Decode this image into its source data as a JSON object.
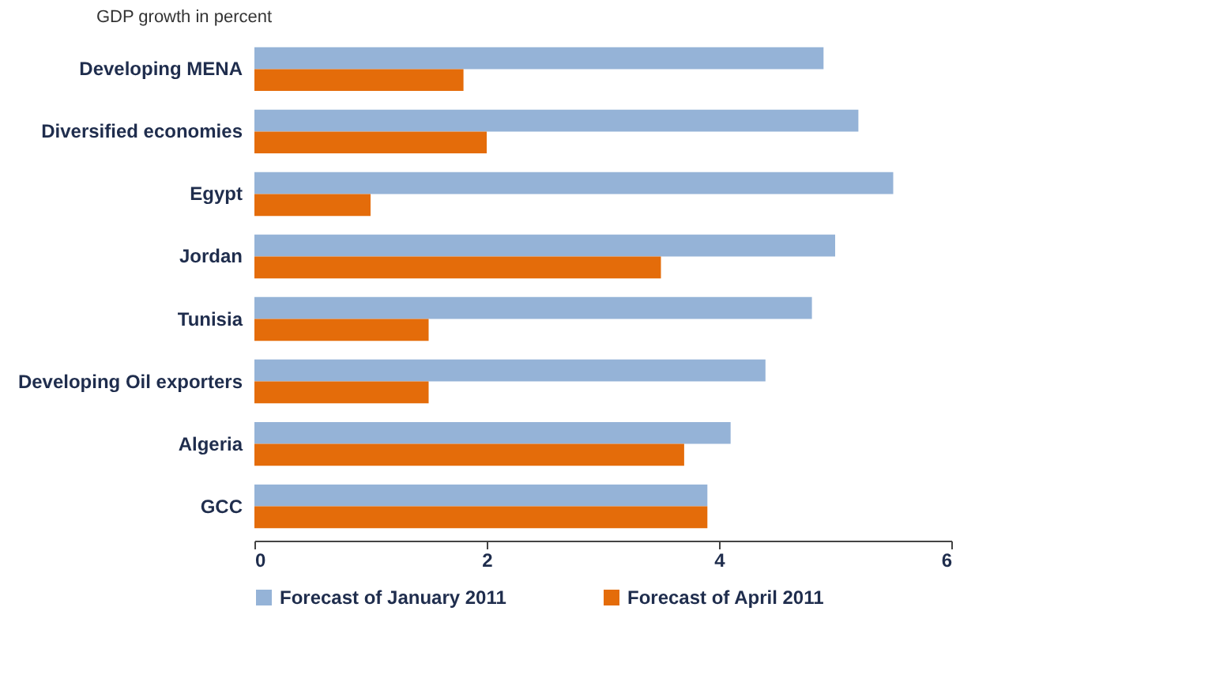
{
  "chart_data": {
    "type": "bar",
    "orientation": "horizontal",
    "title": "GDP growth in percent",
    "categories": [
      "Developing MENA",
      "Diversified economies",
      "Egypt",
      "Jordan",
      "Tunisia",
      "Developing Oil exporters",
      "Algeria",
      "GCC"
    ],
    "series": [
      {
        "name": "Forecast of January 2011",
        "color": "#95b3d7",
        "values": [
          4.9,
          5.2,
          5.5,
          5.0,
          4.8,
          4.4,
          4.1,
          3.9
        ]
      },
      {
        "name": "Forecast of April 2011",
        "color": "#e46c0a",
        "values": [
          1.8,
          2.0,
          1.0,
          3.5,
          1.5,
          1.5,
          3.7,
          3.9
        ]
      }
    ],
    "xlim": [
      0,
      6
    ],
    "xticks": [
      0,
      2,
      4,
      6
    ],
    "legend": "bottom"
  }
}
